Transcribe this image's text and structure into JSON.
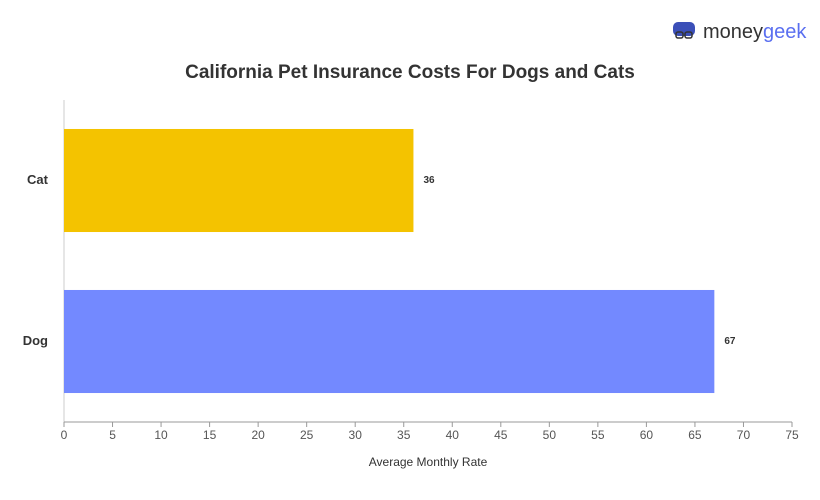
{
  "logo": {
    "first": "money",
    "second": "geek"
  },
  "chart_data": {
    "type": "hbar",
    "title": "California Pet Insurance Costs For Dogs and Cats",
    "categories": [
      "Cat",
      "Dog"
    ],
    "values": [
      36,
      67
    ],
    "colors": [
      "#f4c300",
      "#7389ff"
    ],
    "xlabel": "Average Monthly Rate",
    "xlim": [
      0,
      75
    ],
    "xticks": [
      0,
      5,
      10,
      15,
      20,
      25,
      30,
      35,
      40,
      45,
      50,
      55,
      60,
      65,
      70,
      75
    ]
  }
}
